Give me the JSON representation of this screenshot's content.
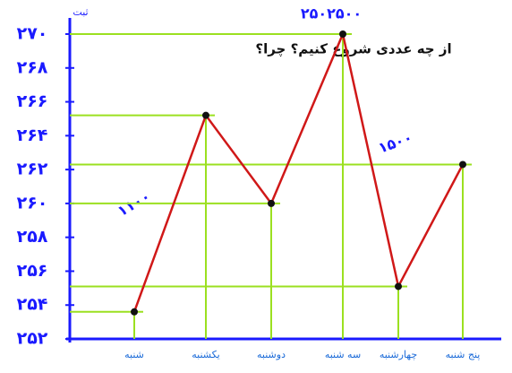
{
  "chart_data": {
    "type": "line",
    "y_label": "ثبت",
    "annotations": [
      "از چه عددی شروع کنیم؟ چرا؟",
      "۱۱۰۰",
      "۱۵۰۰",
      "۲۵۰۲۵۰۰"
    ],
    "categories": [
      "شنبه",
      "یکشنبه",
      "دوشنبه",
      "سه شنبه",
      "چهارشنبه",
      "پنج شنبه"
    ],
    "values": [
      253.6,
      265.2,
      260,
      270,
      255.1,
      262.3
    ],
    "color": "#d01818",
    "guide_color": "#9be020",
    "ylim": [
      252,
      270
    ],
    "yticks": [
      {
        "value": 252,
        "label": "۲۵۲"
      },
      {
        "value": 254,
        "label": "۲۵۴"
      },
      {
        "value": 256,
        "label": "۲۵۶"
      },
      {
        "value": 258,
        "label": "۲۵۸"
      },
      {
        "value": 260,
        "label": "۲۶۰"
      },
      {
        "value": 262,
        "label": "۲۶۲"
      },
      {
        "value": 264,
        "label": "۲۶۴"
      },
      {
        "value": 266,
        "label": "۲۶۶"
      },
      {
        "value": 268,
        "label": "۲۶۸"
      },
      {
        "value": 270,
        "label": "۲۷۰"
      }
    ]
  }
}
